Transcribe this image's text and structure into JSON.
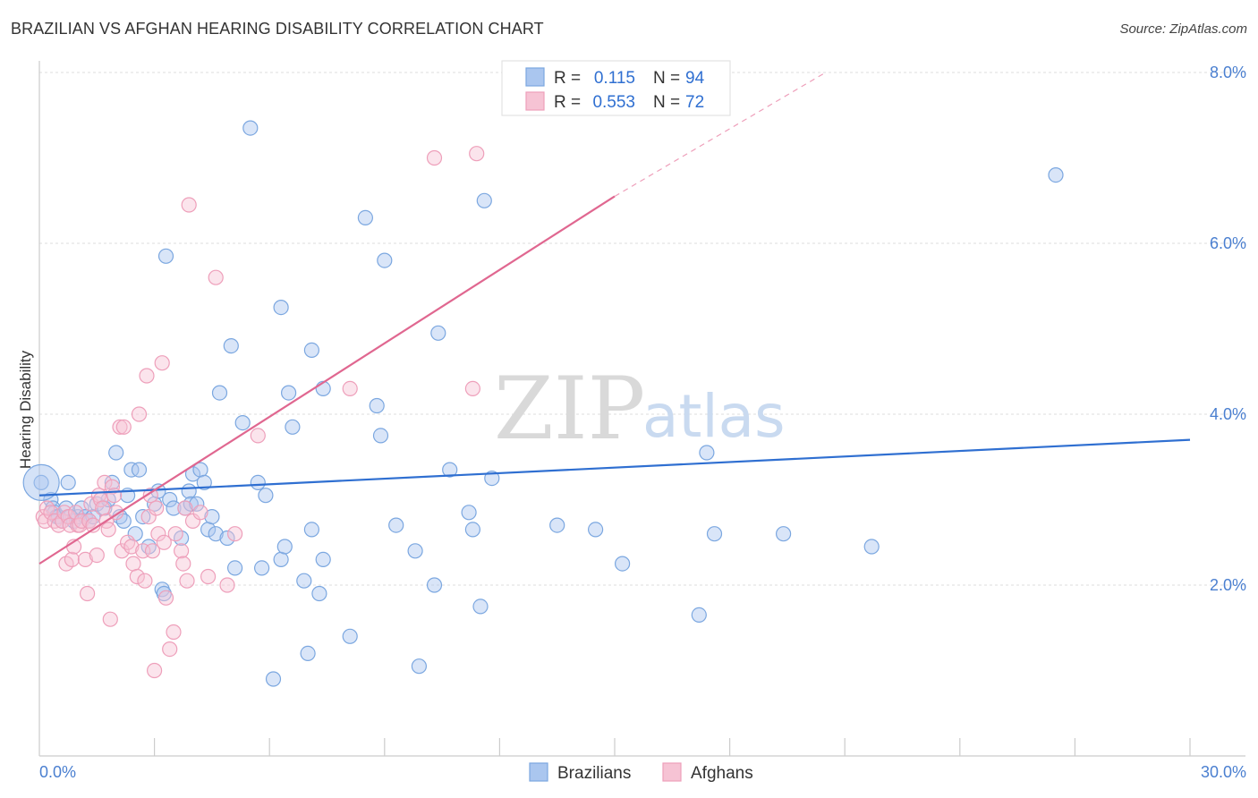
{
  "chart_data": {
    "type": "scatter",
    "title": "BRAZILIAN VS AFGHAN HEARING DISABILITY CORRELATION CHART",
    "source": "Source: ZipAtlas.com",
    "xlabel": "",
    "ylabel": "Hearing Disability",
    "xlim": [
      0,
      30
    ],
    "ylim": [
      0,
      8.4
    ],
    "x_tick_labels": [
      "0.0%",
      "30.0%"
    ],
    "y_ticks": [
      2,
      4,
      6,
      8
    ],
    "y_tick_labels": [
      "2.0%",
      "4.0%",
      "6.0%",
      "8.0%"
    ],
    "watermark": {
      "part1": "ZIP",
      "part2": "atlas"
    },
    "legend": [
      {
        "r_label": "R =",
        "r_value": "0.115",
        "n_label": "N =",
        "n_value": "94"
      },
      {
        "r_label": "R =",
        "r_value": "0.553",
        "n_label": "N =",
        "n_value": "72"
      }
    ],
    "series": [
      {
        "name": "Brazilians",
        "color": "#7ba7e0",
        "fill": "#aac6ef",
        "line_color": "#2f6fd1",
        "trend": {
          "x": [
            0,
            30
          ],
          "y": [
            3.05,
            3.7
          ]
        },
        "points": [
          [
            0.05,
            3.2
          ],
          [
            0.3,
            3.0
          ],
          [
            0.35,
            2.9
          ],
          [
            0.4,
            2.85
          ],
          [
            0.45,
            2.8
          ],
          [
            0.5,
            2.8
          ],
          [
            0.6,
            2.75
          ],
          [
            0.7,
            2.9
          ],
          [
            0.75,
            3.2
          ],
          [
            0.8,
            2.8
          ],
          [
            0.9,
            2.75
          ],
          [
            1.0,
            2.8
          ],
          [
            1.1,
            2.9
          ],
          [
            1.2,
            2.8
          ],
          [
            1.3,
            2.75
          ],
          [
            1.4,
            2.8
          ],
          [
            1.5,
            2.95
          ],
          [
            1.7,
            2.9
          ],
          [
            1.8,
            3.0
          ],
          [
            1.9,
            3.2
          ],
          [
            2.0,
            3.55
          ],
          [
            2.1,
            2.8
          ],
          [
            2.2,
            2.75
          ],
          [
            2.3,
            3.05
          ],
          [
            2.4,
            3.35
          ],
          [
            2.5,
            2.6
          ],
          [
            2.6,
            3.35
          ],
          [
            2.7,
            2.8
          ],
          [
            2.85,
            2.45
          ],
          [
            3.0,
            2.95
          ],
          [
            3.1,
            3.1
          ],
          [
            3.2,
            1.95
          ],
          [
            3.25,
            1.9
          ],
          [
            3.3,
            5.85
          ],
          [
            3.4,
            3.0
          ],
          [
            3.5,
            2.9
          ],
          [
            3.7,
            2.55
          ],
          [
            3.8,
            2.9
          ],
          [
            3.9,
            3.1
          ],
          [
            3.95,
            2.95
          ],
          [
            4.0,
            3.3
          ],
          [
            4.1,
            2.95
          ],
          [
            4.2,
            3.35
          ],
          [
            4.3,
            3.2
          ],
          [
            4.4,
            2.65
          ],
          [
            4.5,
            2.8
          ],
          [
            4.6,
            2.6
          ],
          [
            4.7,
            4.25
          ],
          [
            4.9,
            2.55
          ],
          [
            5.0,
            4.8
          ],
          [
            5.1,
            2.2
          ],
          [
            5.3,
            3.9
          ],
          [
            5.5,
            7.35
          ],
          [
            5.7,
            3.2
          ],
          [
            5.8,
            2.2
          ],
          [
            5.9,
            3.05
          ],
          [
            6.1,
            0.9
          ],
          [
            6.3,
            2.3
          ],
          [
            6.3,
            5.25
          ],
          [
            6.4,
            2.45
          ],
          [
            6.5,
            4.25
          ],
          [
            6.6,
            3.85
          ],
          [
            6.9,
            2.05
          ],
          [
            7.0,
            1.2
          ],
          [
            7.1,
            2.65
          ],
          [
            7.1,
            4.75
          ],
          [
            7.3,
            1.9
          ],
          [
            7.4,
            2.3
          ],
          [
            7.4,
            4.3
          ],
          [
            8.1,
            1.4
          ],
          [
            8.5,
            6.3
          ],
          [
            8.8,
            4.1
          ],
          [
            8.9,
            3.75
          ],
          [
            9.0,
            5.8
          ],
          [
            9.3,
            2.7
          ],
          [
            9.8,
            2.4
          ],
          [
            9.9,
            1.05
          ],
          [
            10.3,
            2.0
          ],
          [
            10.4,
            4.95
          ],
          [
            10.7,
            3.35
          ],
          [
            11.2,
            2.85
          ],
          [
            11.3,
            2.65
          ],
          [
            11.5,
            1.75
          ],
          [
            11.6,
            6.5
          ],
          [
            11.8,
            3.25
          ],
          [
            13.5,
            2.7
          ],
          [
            14.5,
            2.65
          ],
          [
            15.2,
            2.25
          ],
          [
            17.2,
            1.65
          ],
          [
            17.4,
            3.55
          ],
          [
            17.6,
            2.6
          ],
          [
            19.4,
            2.6
          ],
          [
            21.7,
            2.45
          ],
          [
            26.5,
            6.8
          ]
        ]
      },
      {
        "name": "Afghans",
        "color": "#ee9fba",
        "fill": "#f6c3d4",
        "line_color": "#e06790",
        "trend": {
          "x": [
            0,
            15
          ],
          "y": [
            2.25,
            6.55
          ]
        },
        "trend_dashed": {
          "x": [
            15,
            20.5
          ],
          "y": [
            6.55,
            8.0
          ]
        },
        "points": [
          [
            0.1,
            2.8
          ],
          [
            0.15,
            2.75
          ],
          [
            0.2,
            2.9
          ],
          [
            0.3,
            2.85
          ],
          [
            0.4,
            2.75
          ],
          [
            0.5,
            2.7
          ],
          [
            0.6,
            2.75
          ],
          [
            0.65,
            2.85
          ],
          [
            0.7,
            2.25
          ],
          [
            0.75,
            2.8
          ],
          [
            0.8,
            2.7
          ],
          [
            0.85,
            2.3
          ],
          [
            0.9,
            2.45
          ],
          [
            0.95,
            2.85
          ],
          [
            1.0,
            2.7
          ],
          [
            1.05,
            2.7
          ],
          [
            1.1,
            2.75
          ],
          [
            1.2,
            2.3
          ],
          [
            1.25,
            1.9
          ],
          [
            1.3,
            2.75
          ],
          [
            1.35,
            2.95
          ],
          [
            1.4,
            2.7
          ],
          [
            1.5,
            2.35
          ],
          [
            1.55,
            3.05
          ],
          [
            1.6,
            3.0
          ],
          [
            1.65,
            2.9
          ],
          [
            1.7,
            3.2
          ],
          [
            1.75,
            2.75
          ],
          [
            1.8,
            2.65
          ],
          [
            1.85,
            1.6
          ],
          [
            1.9,
            3.15
          ],
          [
            1.95,
            3.05
          ],
          [
            2.0,
            2.85
          ],
          [
            2.1,
            3.85
          ],
          [
            2.15,
            2.4
          ],
          [
            2.2,
            3.85
          ],
          [
            2.3,
            2.5
          ],
          [
            2.4,
            2.45
          ],
          [
            2.45,
            2.25
          ],
          [
            2.55,
            2.1
          ],
          [
            2.6,
            4.0
          ],
          [
            2.7,
            2.4
          ],
          [
            2.75,
            2.05
          ],
          [
            2.8,
            4.45
          ],
          [
            2.85,
            2.8
          ],
          [
            2.9,
            3.05
          ],
          [
            2.95,
            2.4
          ],
          [
            3.0,
            1.0
          ],
          [
            3.05,
            2.9
          ],
          [
            3.1,
            2.6
          ],
          [
            3.2,
            4.6
          ],
          [
            3.25,
            2.5
          ],
          [
            3.3,
            1.85
          ],
          [
            3.4,
            1.25
          ],
          [
            3.5,
            1.45
          ],
          [
            3.55,
            2.6
          ],
          [
            3.7,
            2.4
          ],
          [
            3.75,
            2.25
          ],
          [
            3.8,
            2.9
          ],
          [
            3.85,
            2.05
          ],
          [
            3.9,
            6.45
          ],
          [
            4.0,
            2.75
          ],
          [
            4.2,
            2.85
          ],
          [
            4.4,
            2.1
          ],
          [
            4.6,
            5.6
          ],
          [
            4.9,
            2.0
          ],
          [
            5.1,
            2.6
          ],
          [
            5.7,
            3.75
          ],
          [
            8.1,
            4.3
          ],
          [
            10.3,
            7.0
          ],
          [
            11.4,
            7.05
          ],
          [
            11.3,
            4.3
          ]
        ]
      }
    ]
  }
}
